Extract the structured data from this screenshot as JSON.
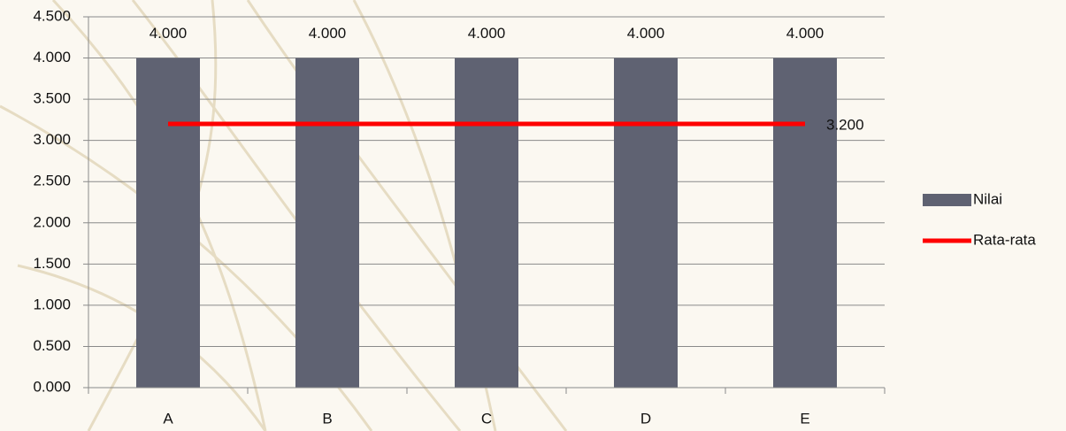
{
  "chart_data": {
    "type": "bar",
    "categories": [
      "A",
      "B",
      "C",
      "D",
      "E"
    ],
    "series": [
      {
        "name": "Nilai",
        "type": "bar",
        "color": "#5f6272",
        "values": [
          4,
          4,
          4,
          4,
          4
        ],
        "value_labels": [
          "4.000",
          "4.000",
          "4.000",
          "4.000",
          "4.000"
        ]
      },
      {
        "name": "Rata-rata",
        "type": "line",
        "color": "#ff0000",
        "values": [
          3.2,
          3.2,
          3.2,
          3.2,
          3.2
        ],
        "value_labels": [
          null,
          null,
          null,
          null,
          "3.200"
        ]
      }
    ],
    "ylim": [
      0,
      4.5
    ],
    "yticks": [
      {
        "value": 0,
        "label": "0.000"
      },
      {
        "value": 0.5,
        "label": "0.500"
      },
      {
        "value": 1,
        "label": "1.000"
      },
      {
        "value": 1.5,
        "label": "1.500"
      },
      {
        "value": 2,
        "label": "2.000"
      },
      {
        "value": 2.5,
        "label": "2.500"
      },
      {
        "value": 3,
        "label": "3.000"
      },
      {
        "value": 3.5,
        "label": "3.500"
      },
      {
        "value": 4,
        "label": "4.000"
      },
      {
        "value": 4.5,
        "label": "4.500"
      }
    ],
    "grid": true,
    "legend": "right"
  }
}
